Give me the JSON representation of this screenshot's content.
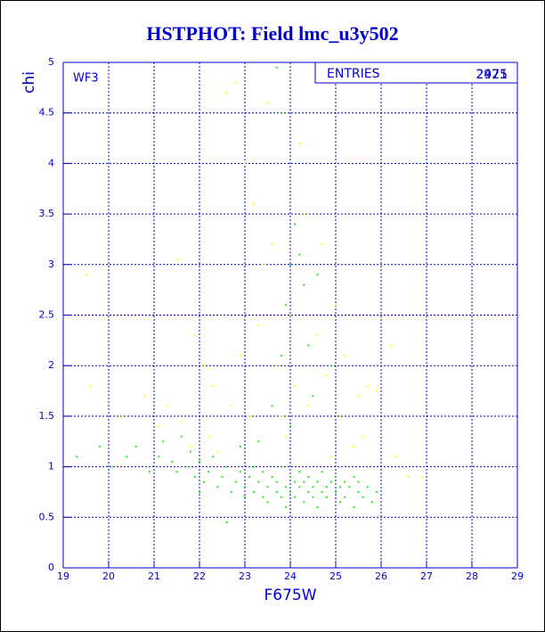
{
  "chart_data": {
    "type": "scatter",
    "title": "HSTPHOT: Field lmc_u3y502",
    "x_label": "F675W",
    "y_label": "chi",
    "annotation": "WF3",
    "stats": {
      "label": "ENTRIES",
      "values": [
        2925,
        2471
      ]
    },
    "xlim": [
      19,
      29
    ],
    "ylim": [
      0,
      5
    ],
    "xticks": [
      19,
      20,
      21,
      22,
      23,
      24,
      25,
      26,
      27,
      28,
      29
    ],
    "yticks": [
      0,
      0.5,
      1,
      1.5,
      2,
      2.5,
      3,
      3.5,
      4,
      4.5,
      5
    ],
    "grid": true,
    "series": [
      {
        "color": "#ffff00",
        "x": [
          19.6,
          19.5,
          20.3,
          20.8,
          21.1,
          21.3,
          21.5,
          21.6,
          21.9,
          22.1,
          22.2,
          22.3,
          22.5,
          22.6,
          22.7,
          22.8,
          22.9,
          23.0,
          23.1,
          23.2,
          23.3,
          23.4,
          23.5,
          23.6,
          23.7,
          23.8,
          24.0,
          24.1,
          24.2,
          24.3,
          24.4,
          24.6,
          24.7,
          24.8,
          25.0,
          25.1,
          25.2,
          25.4,
          25.5,
          25.6,
          25.7,
          25.9,
          26.2,
          26.3,
          26.6,
          26.9,
          22.4,
          21.8,
          23.9,
          24.9
        ],
        "y": [
          1.8,
          2.9,
          1.5,
          1.7,
          1.4,
          1.6,
          3.05,
          1.45,
          2.3,
          2.0,
          1.3,
          1.8,
          2.5,
          4.7,
          1.6,
          4.8,
          2.1,
          4.0,
          1.5,
          3.6,
          2.4,
          3.0,
          4.6,
          3.2,
          2.0,
          1.5,
          2.5,
          1.8,
          4.2,
          3.5,
          1.6,
          2.3,
          3.2,
          1.9,
          2.6,
          1.5,
          2.1,
          1.2,
          1.7,
          1.3,
          1.8,
          1.75,
          2.2,
          1.1,
          0.9,
          0.9,
          1.15,
          1.2,
          1.3,
          1.1
        ]
      },
      {
        "color": "#22e622",
        "x": [
          19.3,
          19.8,
          20.1,
          20.4,
          20.6,
          20.9,
          21.1,
          21.2,
          21.4,
          21.5,
          21.7,
          21.8,
          21.9,
          22.0,
          22.1,
          22.2,
          22.3,
          22.4,
          22.5,
          22.6,
          22.7,
          22.8,
          22.9,
          23.0,
          23.0,
          23.1,
          23.2,
          23.2,
          23.3,
          23.4,
          23.4,
          23.5,
          23.5,
          23.6,
          23.7,
          23.7,
          23.8,
          23.8,
          23.9,
          23.9,
          24.0,
          24.0,
          24.1,
          24.1,
          24.2,
          24.2,
          24.3,
          24.3,
          24.4,
          24.4,
          24.5,
          24.5,
          24.6,
          24.6,
          24.7,
          24.7,
          24.8,
          24.8,
          24.9,
          25.0,
          25.0,
          25.1,
          25.1,
          25.2,
          25.2,
          25.3,
          25.4,
          25.4,
          25.5,
          25.5,
          25.6,
          25.7,
          25.8,
          25.9,
          23.6,
          23.8,
          23.9,
          24.0,
          24.1,
          24.2,
          24.3,
          24.4,
          24.5,
          23.8,
          23.7,
          24.0,
          24.6,
          24.9,
          22.6,
          23.3,
          22.9,
          21.6,
          22.0
        ],
        "y": [
          1.1,
          1.2,
          1.0,
          1.1,
          1.2,
          0.95,
          1.1,
          1.25,
          1.05,
          0.95,
          1.0,
          1.15,
          0.9,
          1.05,
          0.85,
          0.95,
          1.1,
          0.8,
          0.9,
          1.0,
          0.75,
          0.85,
          0.95,
          0.7,
          0.8,
          0.9,
          0.75,
          1.0,
          0.85,
          0.7,
          0.95,
          0.8,
          0.65,
          0.9,
          0.75,
          0.85,
          0.7,
          1.0,
          0.8,
          0.6,
          0.9,
          0.75,
          0.85,
          0.7,
          0.8,
          0.95,
          0.65,
          0.85,
          0.75,
          0.9,
          0.8,
          0.7,
          0.85,
          0.6,
          0.75,
          0.95,
          0.8,
          0.7,
          0.85,
          0.75,
          0.9,
          0.8,
          0.65,
          0.85,
          0.7,
          0.8,
          0.9,
          0.6,
          0.75,
          0.85,
          0.7,
          0.8,
          0.65,
          0.75,
          1.6,
          2.1,
          2.6,
          3.0,
          3.4,
          3.1,
          2.8,
          2.2,
          1.7,
          4.5,
          4.95,
          1.4,
          2.9,
          2.0,
          0.45,
          1.25,
          1.2,
          1.3,
          0.75
        ]
      }
    ]
  }
}
